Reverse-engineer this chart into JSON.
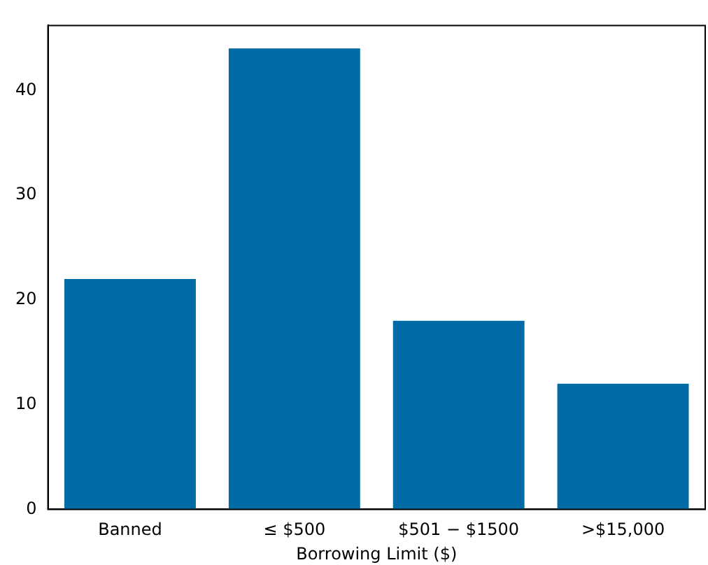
{
  "chart_data": {
    "type": "bar",
    "xlabel": "Borrowing Limit ($)",
    "categories": [
      "Banned",
      "≤ $500",
      "$501 − $1500",
      ">$15,000"
    ],
    "values": [
      22,
      44,
      18,
      12
    ],
    "color": "#006ba4",
    "ylim": [
      0,
      46.2
    ],
    "yticks": [
      0,
      10,
      20,
      30,
      40
    ],
    "grid": false,
    "legend": false
  }
}
